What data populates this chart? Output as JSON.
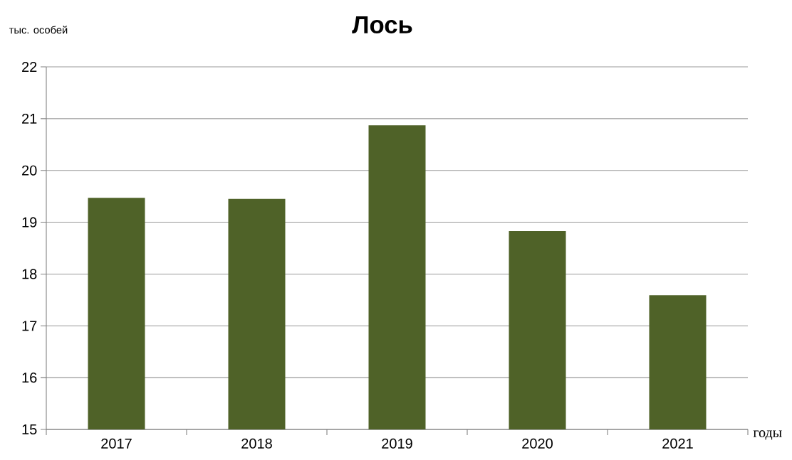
{
  "chart_data": {
    "type": "bar",
    "title": "Лось",
    "ylabel": "тыс. особей",
    "xlabel": "годы",
    "categories": [
      "2017",
      "2018",
      "2019",
      "2020",
      "2021"
    ],
    "values": [
      19.47,
      19.45,
      20.87,
      18.83,
      17.59
    ],
    "color": "#4f6228",
    "ylim": [
      15,
      22
    ],
    "yticks": [
      15,
      16,
      17,
      18,
      19,
      20,
      21,
      22
    ],
    "grid": "y"
  }
}
